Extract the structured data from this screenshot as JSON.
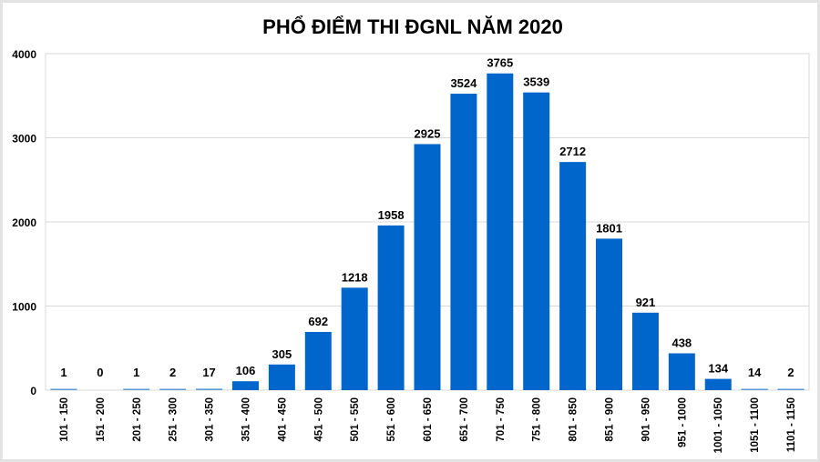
{
  "chart_data": {
    "type": "bar",
    "title": "PHỔ ĐIỂM THI ĐGNL NĂM 2020",
    "xlabel": "",
    "ylabel": "",
    "ylim": [
      0,
      4000
    ],
    "yticks": [
      0,
      1000,
      2000,
      3000,
      4000
    ],
    "grid": true,
    "bar_color": "#0066CC",
    "categories": [
      "101 - 150",
      "151 - 200",
      "201 - 250",
      "251 - 300",
      "301 - 350",
      "351 - 400",
      "401 - 450",
      "451 - 500",
      "501 - 550",
      "551 - 600",
      "601 - 650",
      "651 - 700",
      "701 - 750",
      "751 - 800",
      "801 - 850",
      "851 - 900",
      "901 - 950",
      "951 - 1000",
      "1001 - 1050",
      "1051 - 1100",
      "1101 - 1150"
    ],
    "values": [
      1,
      0,
      1,
      2,
      17,
      106,
      305,
      692,
      1218,
      1958,
      2925,
      3524,
      3765,
      3539,
      2712,
      1801,
      921,
      438,
      134,
      14,
      2
    ]
  }
}
